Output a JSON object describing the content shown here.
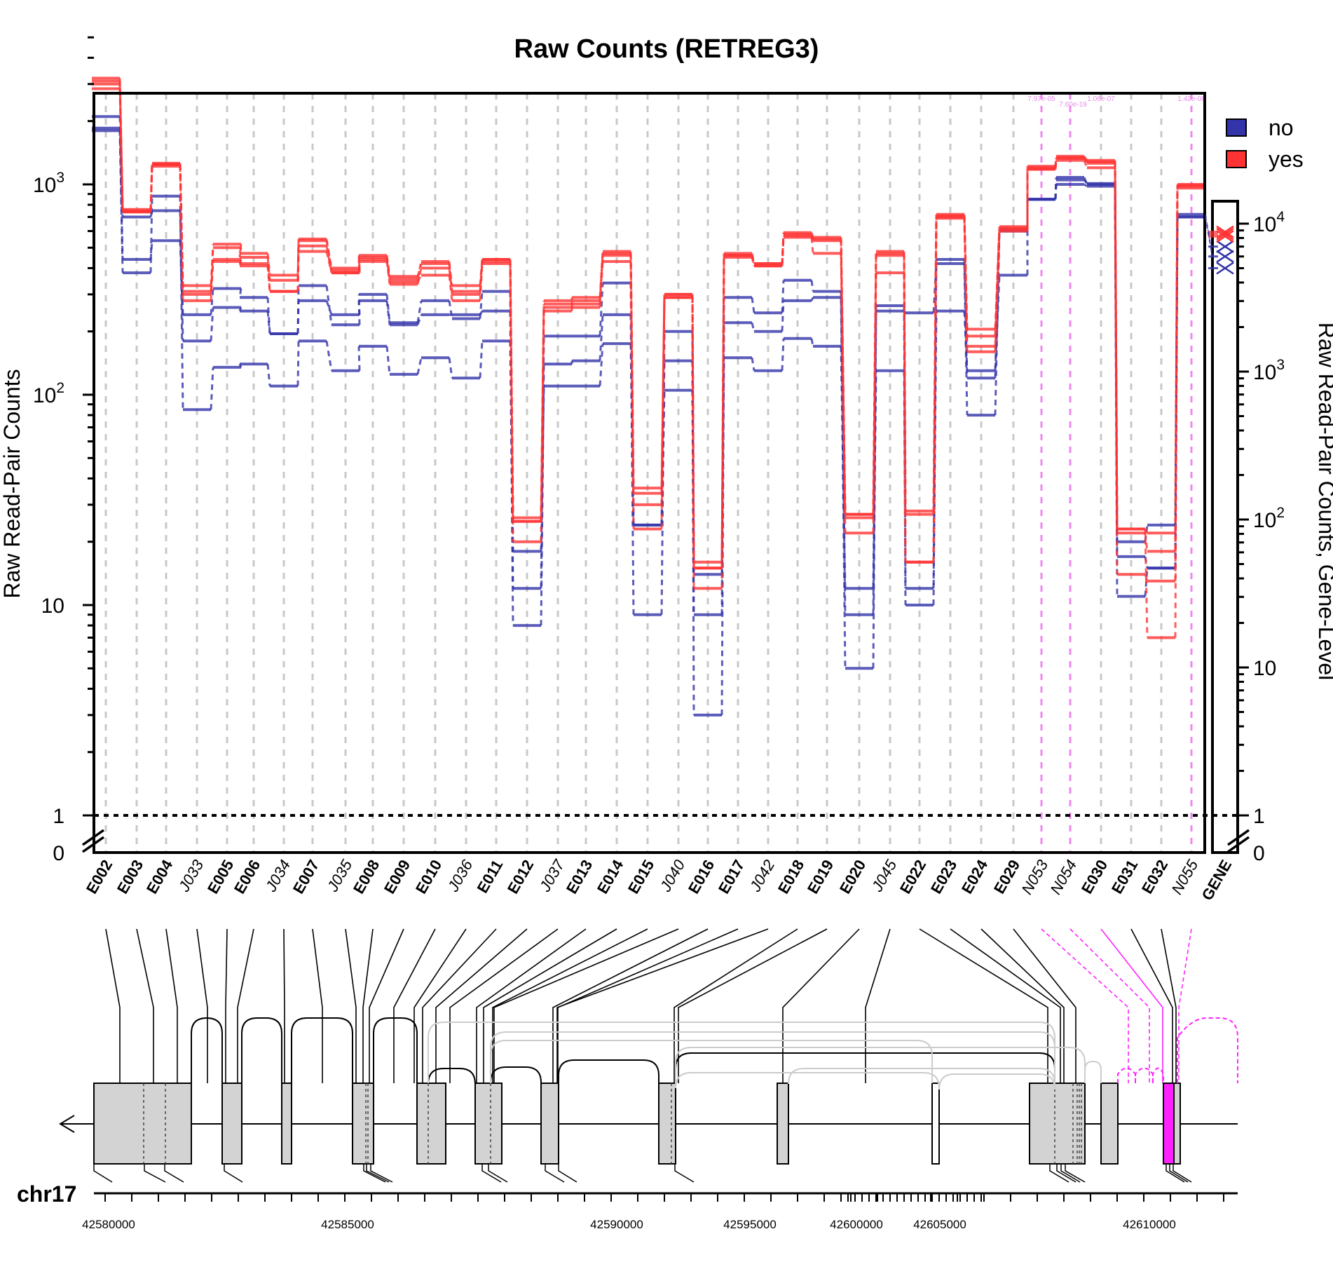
{
  "chart_data": {
    "type": "line",
    "title": "Raw Counts (RETREG3)",
    "ylabel": "Raw Read-Pair Counts",
    "ylabel_right": "Raw Read-Pair Counts, Gene-Level",
    "y_scale": "log",
    "ylim": [
      0,
      5000
    ],
    "right_ylim": [
      0,
      15000
    ],
    "grid": "vertical dashed lines at each feature",
    "legend": {
      "position": "top-right",
      "entries": [
        {
          "label": "no",
          "color": "#3333aa"
        },
        {
          "label": "yes",
          "color": "#ff3333"
        }
      ]
    },
    "left_ticks": [
      {
        "value": 1000,
        "base": "10",
        "exp": "3"
      },
      {
        "value": 100,
        "base": "10",
        "exp": "2"
      },
      {
        "value": 10,
        "base": "10",
        "exp": ""
      },
      {
        "value": 1,
        "base": "1",
        "exp": ""
      },
      {
        "value": 0,
        "base": "0",
        "exp": ""
      }
    ],
    "right_ticks": [
      {
        "value": 10000,
        "base": "10",
        "exp": "4"
      },
      {
        "value": 1000,
        "base": "10",
        "exp": "3"
      },
      {
        "value": 100,
        "base": "10",
        "exp": "2"
      },
      {
        "value": 10,
        "base": "10",
        "exp": ""
      },
      {
        "value": 1,
        "base": "1",
        "exp": ""
      },
      {
        "value": 0,
        "base": "0",
        "exp": ""
      }
    ],
    "features": [
      "E002",
      "E003",
      "E004",
      "J033",
      "E005",
      "E006",
      "J034",
      "E007",
      "J035",
      "E008",
      "E009",
      "E010",
      "J036",
      "E011",
      "E012",
      "J037",
      "E013",
      "E014",
      "E015",
      "J040",
      "E016",
      "E017",
      "J042",
      "E018",
      "E019",
      "E020",
      "J045",
      "E022",
      "E023",
      "E024",
      "E029",
      "N053",
      "N054",
      "E030",
      "E031",
      "E032",
      "N055"
    ],
    "gene_label": "GENE",
    "series": [
      {
        "group": "no",
        "values": [
          2100,
          700,
          750,
          180,
          260,
          250,
          195,
          280,
          240,
          280,
          215,
          240,
          240,
          250,
          8,
          140,
          145,
          240,
          9,
          200,
          3,
          220,
          200,
          280,
          290,
          5,
          250,
          245,
          420,
          80,
          600,
          850,
          1080,
          1000,
          20,
          24,
          700
        ]
      },
      {
        "group": "no",
        "values": [
          1850,
          440,
          540,
          240,
          320,
          290,
          195,
          330,
          215,
          300,
          220,
          280,
          230,
          310,
          12,
          190,
          190,
          340,
          24,
          145,
          9,
          290,
          245,
          350,
          310,
          9,
          265,
          10,
          440,
          120,
          610,
          850,
          1050,
          1010,
          17,
          15,
          700
        ]
      },
      {
        "group": "no",
        "values": [
          1800,
          380,
          880,
          85,
          135,
          140,
          110,
          180,
          130,
          170,
          125,
          150,
          120,
          180,
          18,
          110,
          110,
          175,
          24,
          105,
          14,
          150,
          130,
          185,
          170,
          12,
          130,
          12,
          250,
          130,
          370,
          850,
          1000,
          980,
          11,
          15,
          720
        ]
      },
      {
        "group": "yes",
        "values": [
          3200,
          760,
          1260,
          330,
          500,
          470,
          370,
          540,
          400,
          460,
          365,
          420,
          330,
          440,
          26,
          280,
          290,
          480,
          36,
          300,
          16,
          470,
          420,
          590,
          560,
          27,
          480,
          28,
          720,
          205,
          630,
          1220,
          1360,
          1300,
          23,
          22,
          1000
        ]
      },
      {
        "group": "yes",
        "values": [
          3000,
          740,
          1240,
          310,
          430,
          420,
          310,
          510,
          380,
          440,
          335,
          400,
          310,
          430,
          25,
          260,
          280,
          460,
          34,
          300,
          15,
          460,
          410,
          570,
          540,
          26,
          460,
          16,
          700,
          170,
          610,
          1180,
          1340,
          1260,
          22,
          18,
          980
        ]
      },
      {
        "group": "yes",
        "values": [
          2850,
          740,
          1220,
          280,
          440,
          410,
          310,
          480,
          380,
          430,
          345,
          370,
          280,
          420,
          20,
          250,
          260,
          430,
          23,
          290,
          12,
          450,
          410,
          560,
          470,
          22,
          380,
          16,
          690,
          160,
          600,
          1180,
          1300,
          1200,
          14,
          13,
          960
        ]
      },
      {
        "group": "yes",
        "values": [
          3100,
          750,
          1250,
          300,
          520,
          450,
          350,
          550,
          390,
          450,
          355,
          430,
          300,
          440,
          25,
          270,
          270,
          470,
          30,
          290,
          15,
          460,
          420,
          580,
          550,
          27,
          470,
          27,
          710,
          190,
          620,
          1200,
          1330,
          1280,
          23,
          7,
          990
        ]
      }
    ],
    "gene_level": {
      "no": [
        7000,
        6000,
        5000
      ],
      "yes": [
        8800,
        8500,
        8200
      ]
    },
    "novel_pvalues": [
      "7.97e-05",
      "7.60e-19",
      "1.06e-07",
      "1.42e-08"
    ],
    "chromosome": "chr17",
    "coords": [
      "42580000",
      "42585000",
      "42590000",
      "42595000",
      "42600000",
      "42605000",
      "42610000"
    ]
  }
}
